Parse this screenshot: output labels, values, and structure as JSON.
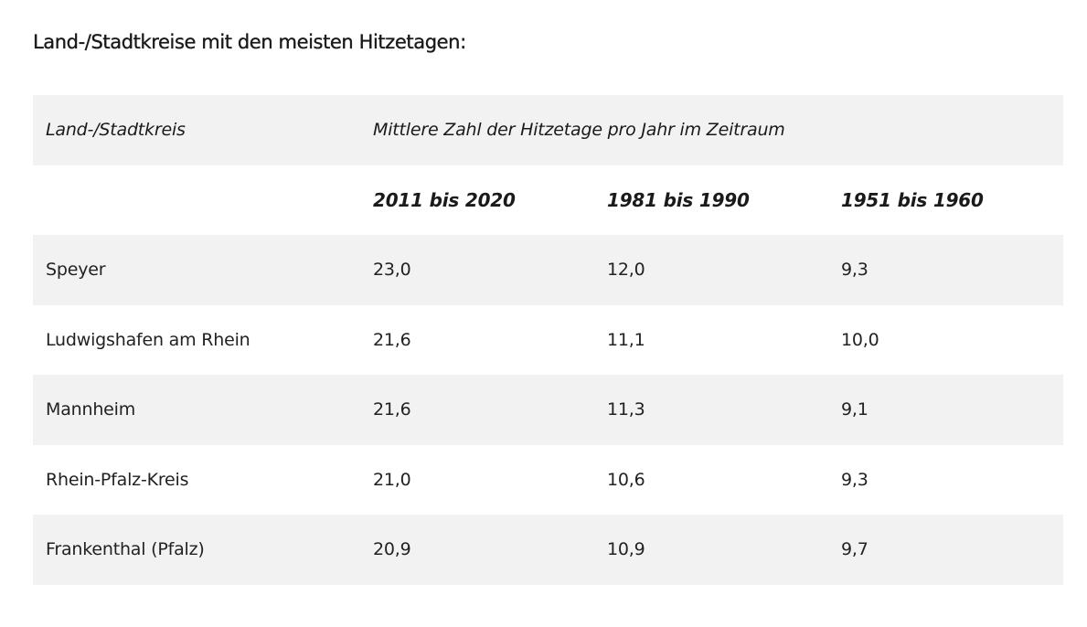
{
  "heading": "Land-/Stadtkreise mit den meisten Hitzetagen:",
  "table": {
    "header": {
      "district_label": "Land-/Stadtkreis",
      "group_label": "Mittlere Zahl der Hitzetage pro Jahr im Zeitraum"
    },
    "periods": [
      "2011 bis 2020",
      "1981 bis 1990",
      "1951 bis 1960"
    ],
    "rows": [
      {
        "name": "Speyer",
        "values": [
          "23,0",
          "12,0",
          "9,3"
        ]
      },
      {
        "name": "Ludwigshafen am Rhein",
        "values": [
          "21,6",
          "11,1",
          "10,0"
        ]
      },
      {
        "name": "Mannheim",
        "values": [
          "21,6",
          "11,3",
          "9,1"
        ]
      },
      {
        "name": "Rhein-Pfalz-Kreis",
        "values": [
          "21,0",
          "10,6",
          "9,3"
        ]
      },
      {
        "name": "Frankenthal (Pfalz)",
        "values": [
          "20,9",
          "10,9",
          "9,7"
        ]
      }
    ]
  }
}
